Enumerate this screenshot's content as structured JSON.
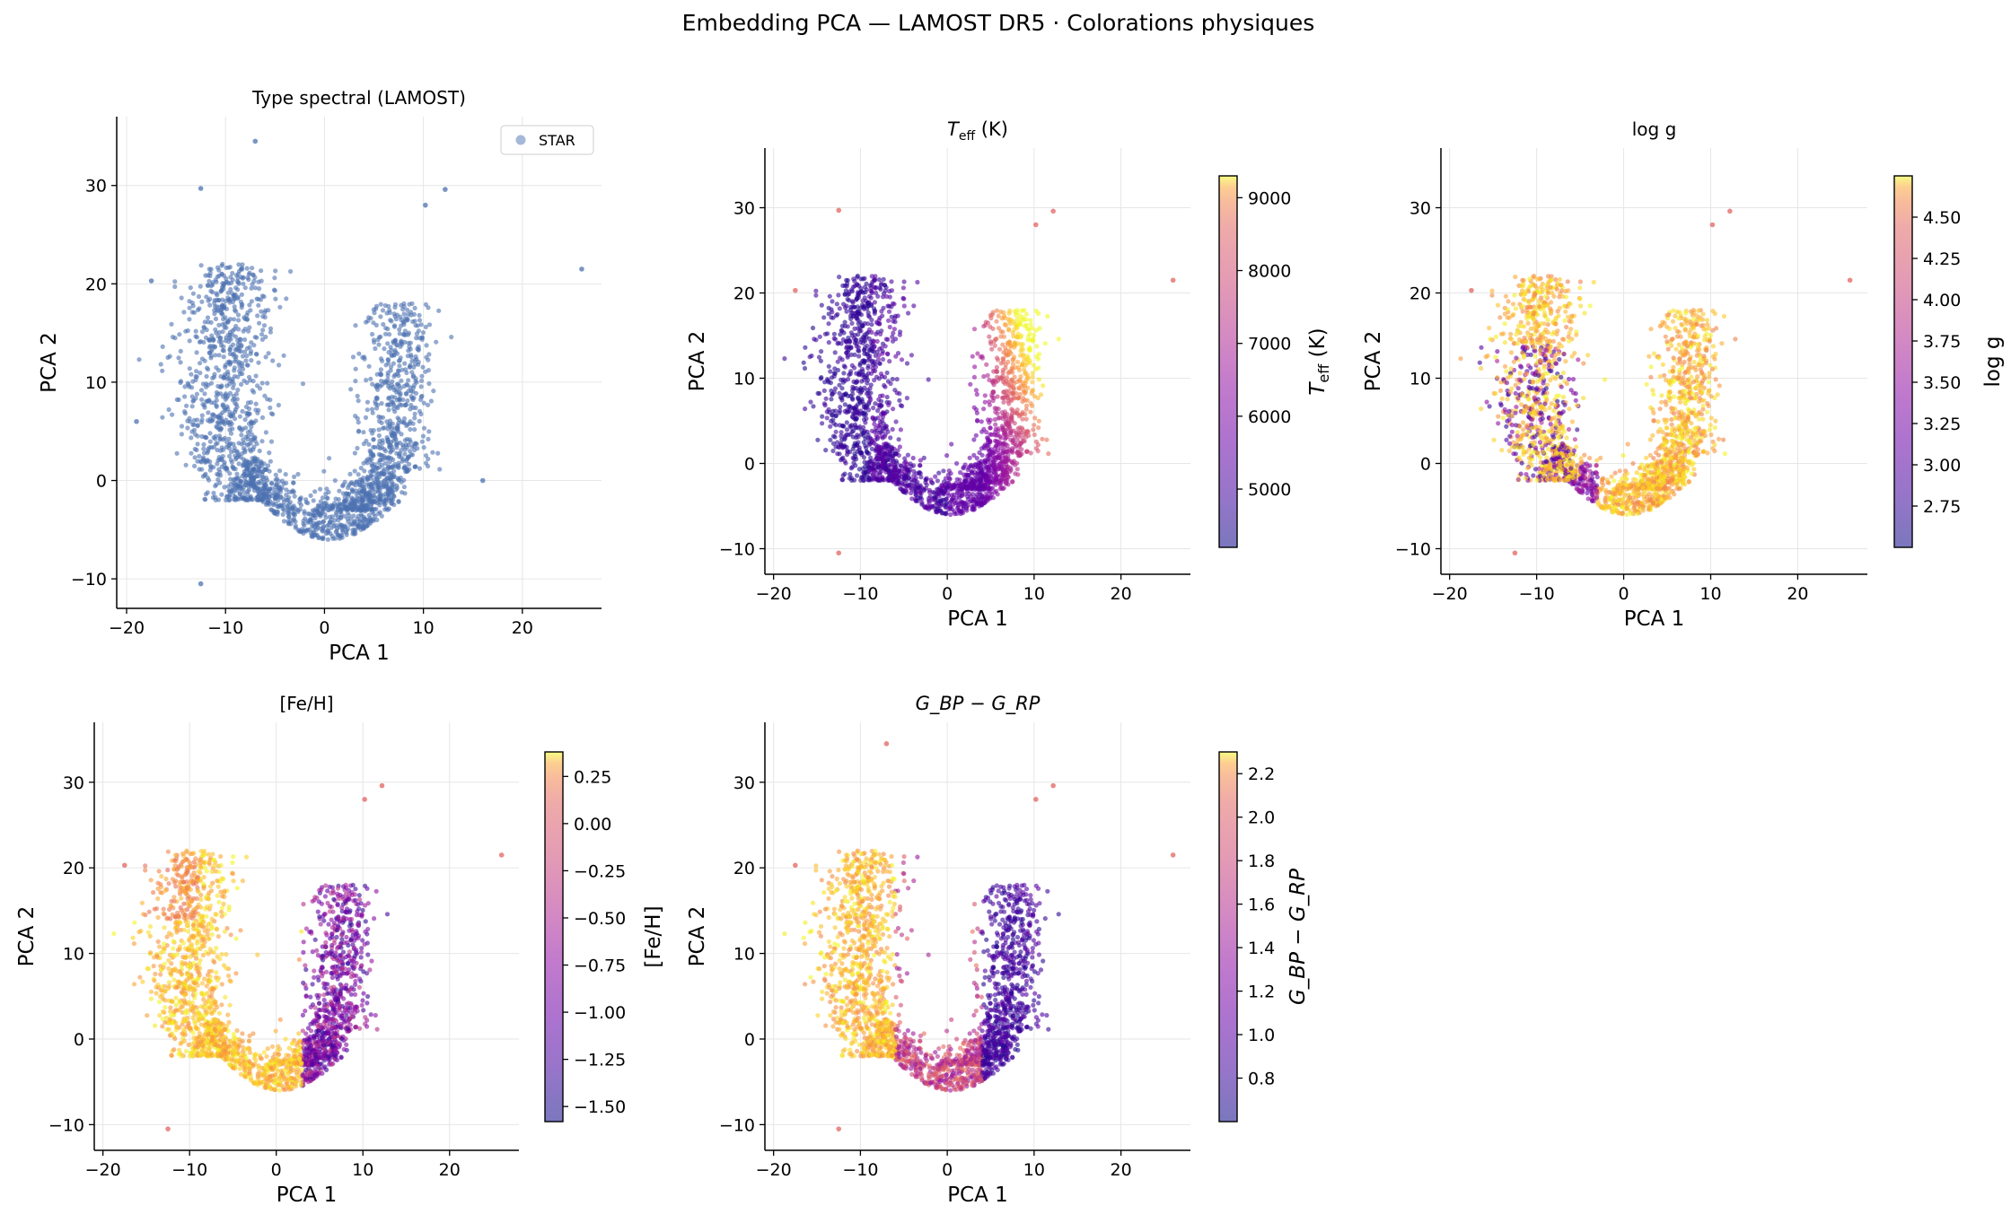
{
  "figure": {
    "title": "Embedding PCA — LAMOST DR5 · Colorations physiques"
  },
  "chart_data": [
    {
      "type": "scatter",
      "id": "p1",
      "title": "Type spectral (LAMOST)",
      "xlabel": "PCA 1",
      "ylabel": "PCA 2",
      "xlim": [
        -21,
        28
      ],
      "ylim": [
        -13,
        37
      ],
      "xticks": [
        -20,
        -10,
        0,
        10,
        20
      ],
      "yticks": [
        -10,
        0,
        10,
        20,
        30
      ],
      "grid": true,
      "legend": {
        "placement": "top-right",
        "entries": [
          {
            "label": "STAR",
            "color": "#4c72b0"
          }
        ]
      },
      "coloring": {
        "mode": "single",
        "color": "#4c72b0"
      },
      "points": [
        [
          -7,
          34.5
        ],
        [
          -12.5,
          29.7
        ],
        [
          12.2,
          29.6
        ],
        [
          10.2,
          28
        ],
        [
          26,
          21.5
        ],
        [
          16,
          0
        ],
        [
          -17.5,
          20.3
        ],
        [
          -12.5,
          -10.5
        ],
        [
          -19,
          6
        ]
      ]
    },
    {
      "type": "scatter",
      "id": "p2",
      "title": "T_eff (K)",
      "xlabel": "PCA 1",
      "ylabel": "PCA 2",
      "xlim": [
        -21,
        28
      ],
      "ylim": [
        -13,
        37
      ],
      "xticks": [
        -20,
        -10,
        0,
        10,
        20
      ],
      "yticks": [
        -10,
        0,
        10,
        20,
        30
      ],
      "grid": true,
      "coloring": {
        "mode": "teff",
        "cmap": "plasma"
      },
      "colorbar": {
        "label": "T_eff (K)",
        "min": 4200,
        "max": 9300,
        "ticks": [
          5000,
          6000,
          7000,
          8000,
          9000
        ],
        "tick_labels": [
          "5000",
          "6000",
          "7000",
          "8000",
          "9000"
        ]
      },
      "points": [
        [
          -12.5,
          29.7
        ],
        [
          12.2,
          29.6
        ],
        [
          10.2,
          28
        ],
        [
          26,
          21.5
        ],
        [
          -17.5,
          20.3
        ],
        [
          -12.5,
          -10.5
        ]
      ]
    },
    {
      "type": "scatter",
      "id": "p3",
      "title": "log g",
      "xlabel": "PCA 1",
      "ylabel": "PCA 2",
      "xlim": [
        -21,
        28
      ],
      "ylim": [
        -13,
        37
      ],
      "xticks": [
        -20,
        -10,
        0,
        10,
        20
      ],
      "yticks": [
        -10,
        0,
        10,
        20,
        30
      ],
      "grid": true,
      "coloring": {
        "mode": "logg",
        "cmap": "plasma"
      },
      "colorbar": {
        "label": "log g",
        "min": 2.5,
        "max": 4.75,
        "ticks": [
          2.75,
          3.0,
          3.25,
          3.5,
          3.75,
          4.0,
          4.25,
          4.5
        ],
        "tick_labels": [
          "2.75",
          "3.00",
          "3.25",
          "3.50",
          "3.75",
          "4.00",
          "4.25",
          "4.50"
        ]
      },
      "points": [
        [
          12.2,
          29.6
        ],
        [
          10.2,
          28
        ],
        [
          26,
          21.5
        ],
        [
          -17.5,
          20.3
        ],
        [
          -12.5,
          -10.5
        ]
      ]
    },
    {
      "type": "scatter",
      "id": "p4",
      "title": "[Fe/H]",
      "xlabel": "PCA 1",
      "ylabel": "PCA 2",
      "xlim": [
        -21,
        28
      ],
      "ylim": [
        -13,
        37
      ],
      "xticks": [
        -20,
        -10,
        0,
        10,
        20
      ],
      "yticks": [
        -10,
        0,
        10,
        20,
        30
      ],
      "grid": true,
      "coloring": {
        "mode": "feh",
        "cmap": "plasma"
      },
      "colorbar": {
        "label": "[Fe/H]",
        "min": -1.58,
        "max": 0.38,
        "ticks": [
          -1.5,
          -1.25,
          -1.0,
          -0.75,
          -0.5,
          -0.25,
          0.0,
          0.25
        ],
        "tick_labels": [
          "−1.50",
          "−1.25",
          "−1.00",
          "−0.75",
          "−0.50",
          "−0.25",
          "0.00",
          "0.25"
        ]
      },
      "points": [
        [
          12.2,
          29.6
        ],
        [
          10.2,
          28
        ],
        [
          26,
          21.5
        ],
        [
          -17.5,
          20.3
        ],
        [
          -12.5,
          -10.5
        ]
      ]
    },
    {
      "type": "scatter",
      "id": "p5",
      "title": "G_BP − G_RP",
      "xlabel": "PCA 1",
      "ylabel": "PCA 2",
      "xlim": [
        -21,
        28
      ],
      "ylim": [
        -13,
        37
      ],
      "xticks": [
        -20,
        -10,
        0,
        10,
        20
      ],
      "yticks": [
        -10,
        0,
        10,
        20,
        30
      ],
      "grid": true,
      "coloring": {
        "mode": "bprp",
        "cmap": "plasma"
      },
      "colorbar": {
        "label": "G_BP − G_RP",
        "min": 0.6,
        "max": 2.3,
        "ticks": [
          0.8,
          1.0,
          1.2,
          1.4,
          1.6,
          1.8,
          2.0,
          2.2
        ],
        "tick_labels": [
          "0.8",
          "1.0",
          "1.2",
          "1.4",
          "1.6",
          "1.8",
          "2.0",
          "2.2"
        ]
      },
      "points": [
        [
          -7,
          34.5
        ],
        [
          12.2,
          29.6
        ],
        [
          10.2,
          28
        ],
        [
          26,
          21.5
        ],
        [
          -17.5,
          20.3
        ],
        [
          -12.5,
          -10.5
        ]
      ]
    }
  ]
}
